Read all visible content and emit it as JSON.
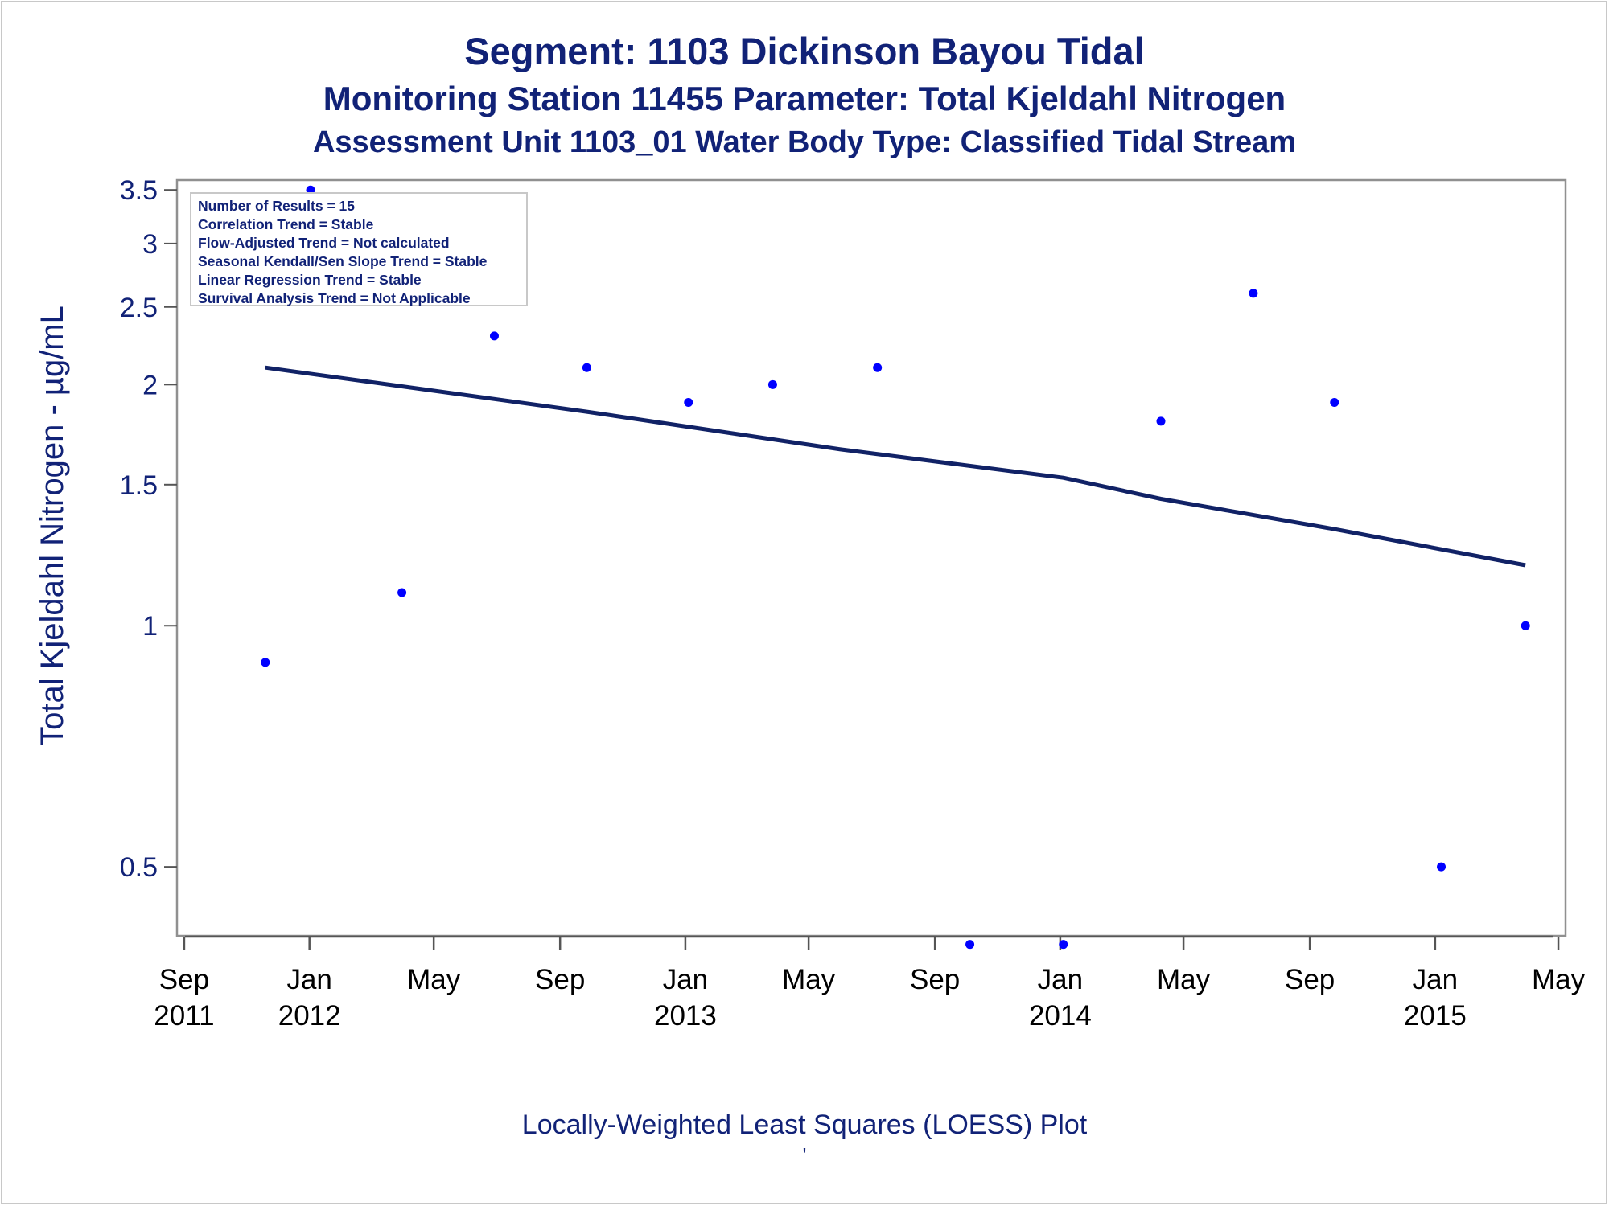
{
  "chart_data": {
    "type": "scatter",
    "title": "Segment: 1103  Dickinson Bayou Tidal",
    "subtitle": "Monitoring Station 11455 Parameter: Total Kjeldahl Nitrogen",
    "subtitle2": "Assessment Unit 1103_01   Water Body Type: Classified Tidal Stream",
    "xlabel": "",
    "ylabel": "Total Kjeldahl Nitrogen -  µg/mL",
    "footnote": "Locally-Weighted Least Squares (LOESS) Plot",
    "footnote2": "'",
    "y_scale": "log",
    "ylim": [
      0.41,
      3.6
    ],
    "xlim": [
      "2011-08-25",
      "2015-05-08"
    ],
    "yticks": [
      {
        "value": 0.5,
        "label": "0.5"
      },
      {
        "value": 1,
        "label": "1"
      },
      {
        "value": 1.5,
        "label": "1.5"
      },
      {
        "value": 2,
        "label": "2"
      },
      {
        "value": 2.5,
        "label": "2.5"
      },
      {
        "value": 3,
        "label": "3"
      },
      {
        "value": 3.5,
        "label": "3.5"
      }
    ],
    "xticks": [
      {
        "date": "2011-09-01",
        "month": "Sep",
        "year": "2011"
      },
      {
        "date": "2012-01-01",
        "month": "Jan",
        "year": "2012"
      },
      {
        "date": "2012-05-01",
        "month": "May",
        "year": ""
      },
      {
        "date": "2012-09-01",
        "month": "Sep",
        "year": ""
      },
      {
        "date": "2013-01-01",
        "month": "Jan",
        "year": "2013"
      },
      {
        "date": "2013-05-01",
        "month": "May",
        "year": ""
      },
      {
        "date": "2013-09-01",
        "month": "Sep",
        "year": ""
      },
      {
        "date": "2014-01-01",
        "month": "Jan",
        "year": "2014"
      },
      {
        "date": "2014-05-01",
        "month": "May",
        "year": ""
      },
      {
        "date": "2014-09-01",
        "month": "Sep",
        "year": ""
      },
      {
        "date": "2015-01-01",
        "month": "Jan",
        "year": "2015"
      },
      {
        "date": "2015-05-01",
        "month": "May",
        "year": ""
      }
    ],
    "series": [
      {
        "type": "scatter",
        "color": "#0000ff",
        "points": [
          {
            "x": "2011-11-19",
            "y": 0.9
          },
          {
            "x": "2012-01-02",
            "y": 3.5
          },
          {
            "x": "2012-03-31",
            "y": 1.1
          },
          {
            "x": "2012-06-29",
            "y": 2.3
          },
          {
            "x": "2012-09-27",
            "y": 2.1
          },
          {
            "x": "2013-01-04",
            "y": 1.9
          },
          {
            "x": "2013-03-27",
            "y": 2.0
          },
          {
            "x": "2013-07-07",
            "y": 2.1
          },
          {
            "x": "2013-10-05",
            "y": 0.4
          },
          {
            "x": "2014-01-04",
            "y": 0.4
          },
          {
            "x": "2014-04-09",
            "y": 1.8
          },
          {
            "x": "2014-07-08",
            "y": 2.6
          },
          {
            "x": "2014-09-25",
            "y": 1.9
          },
          {
            "x": "2015-01-07",
            "y": 0.5
          },
          {
            "x": "2015-03-30",
            "y": 1.0
          }
        ]
      },
      {
        "type": "line",
        "color": "#112266",
        "points": [
          {
            "x": "2011-11-19",
            "y": 2.1
          },
          {
            "x": "2012-09-27",
            "y": 1.85
          },
          {
            "x": "2013-06-01",
            "y": 1.66
          },
          {
            "x": "2014-01-04",
            "y": 1.53
          },
          {
            "x": "2014-04-09",
            "y": 1.44
          },
          {
            "x": "2014-09-25",
            "y": 1.32
          },
          {
            "x": "2015-03-30",
            "y": 1.19
          }
        ]
      }
    ],
    "stats_box": [
      "Number of Results = 15",
      "Correlation Trend = Stable",
      "Flow-Adjusted Trend = Not calculated",
      "Seasonal Kendall/Sen Slope Trend = Stable",
      "Linear Regression Trend = Stable",
      "Survival Analysis Trend = Not Applicable"
    ]
  }
}
